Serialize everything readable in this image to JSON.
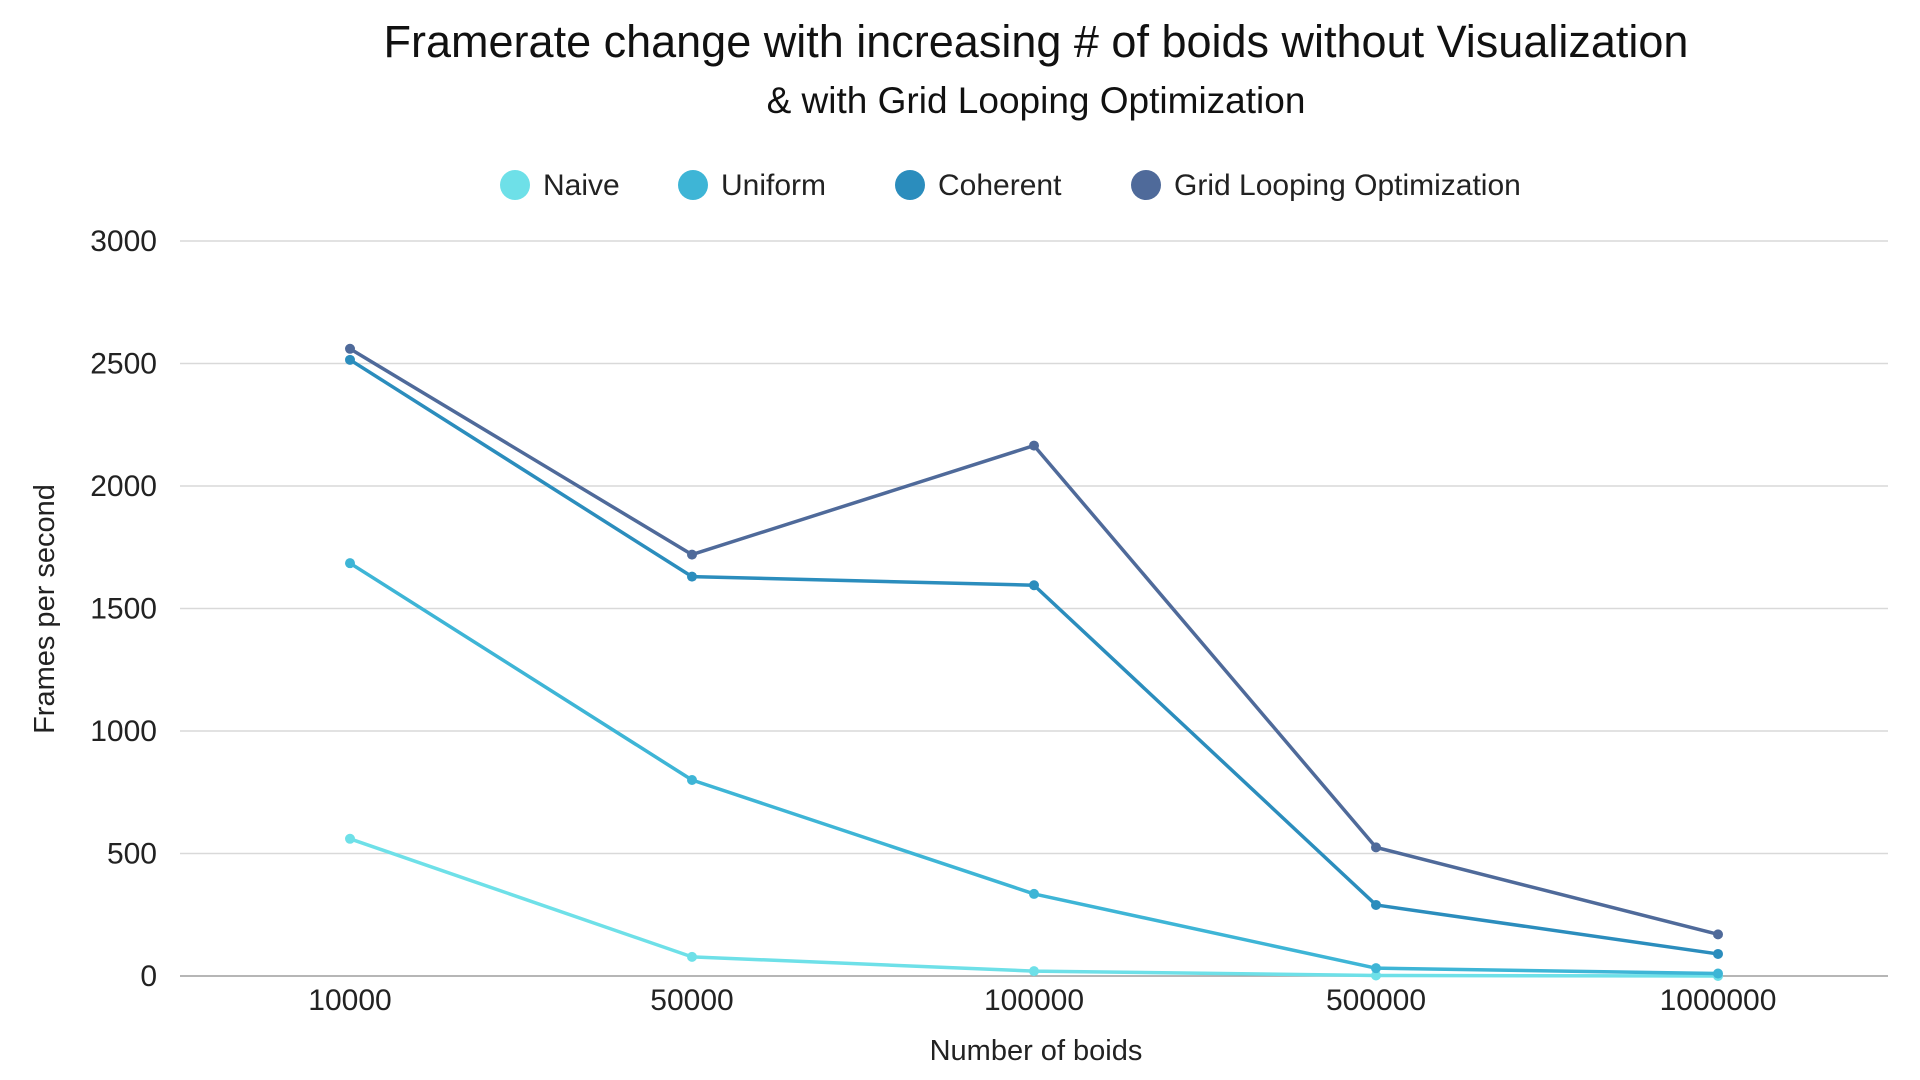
{
  "chart_data": {
    "type": "line",
    "title": "Framerate change with increasing # of boids without Visualization",
    "subtitle": "& with Grid Looping Optimization",
    "xlabel": "Number of boids",
    "ylabel": "Frames per second",
    "categories": [
      "10000",
      "50000",
      "100000",
      "500000",
      "1000000"
    ],
    "ylim": [
      0,
      3000
    ],
    "yticks": [
      0,
      500,
      1000,
      1500,
      2000,
      2500,
      3000
    ],
    "grid": true,
    "legend_position": "top",
    "series": [
      {
        "name": "Naive",
        "color": "#6ee0e8",
        "values": [
          560,
          78,
          20,
          2,
          0
        ]
      },
      {
        "name": "Uniform",
        "color": "#3eb5d6",
        "values": [
          1685,
          800,
          335,
          32,
          10
        ]
      },
      {
        "name": "Coherent",
        "color": "#2b8dbd",
        "values": [
          2515,
          1630,
          1595,
          290,
          90
        ]
      },
      {
        "name": "Grid Looping Optimization",
        "color": "#4f6a9a",
        "values": [
          2560,
          1720,
          2165,
          525,
          170
        ]
      }
    ]
  }
}
